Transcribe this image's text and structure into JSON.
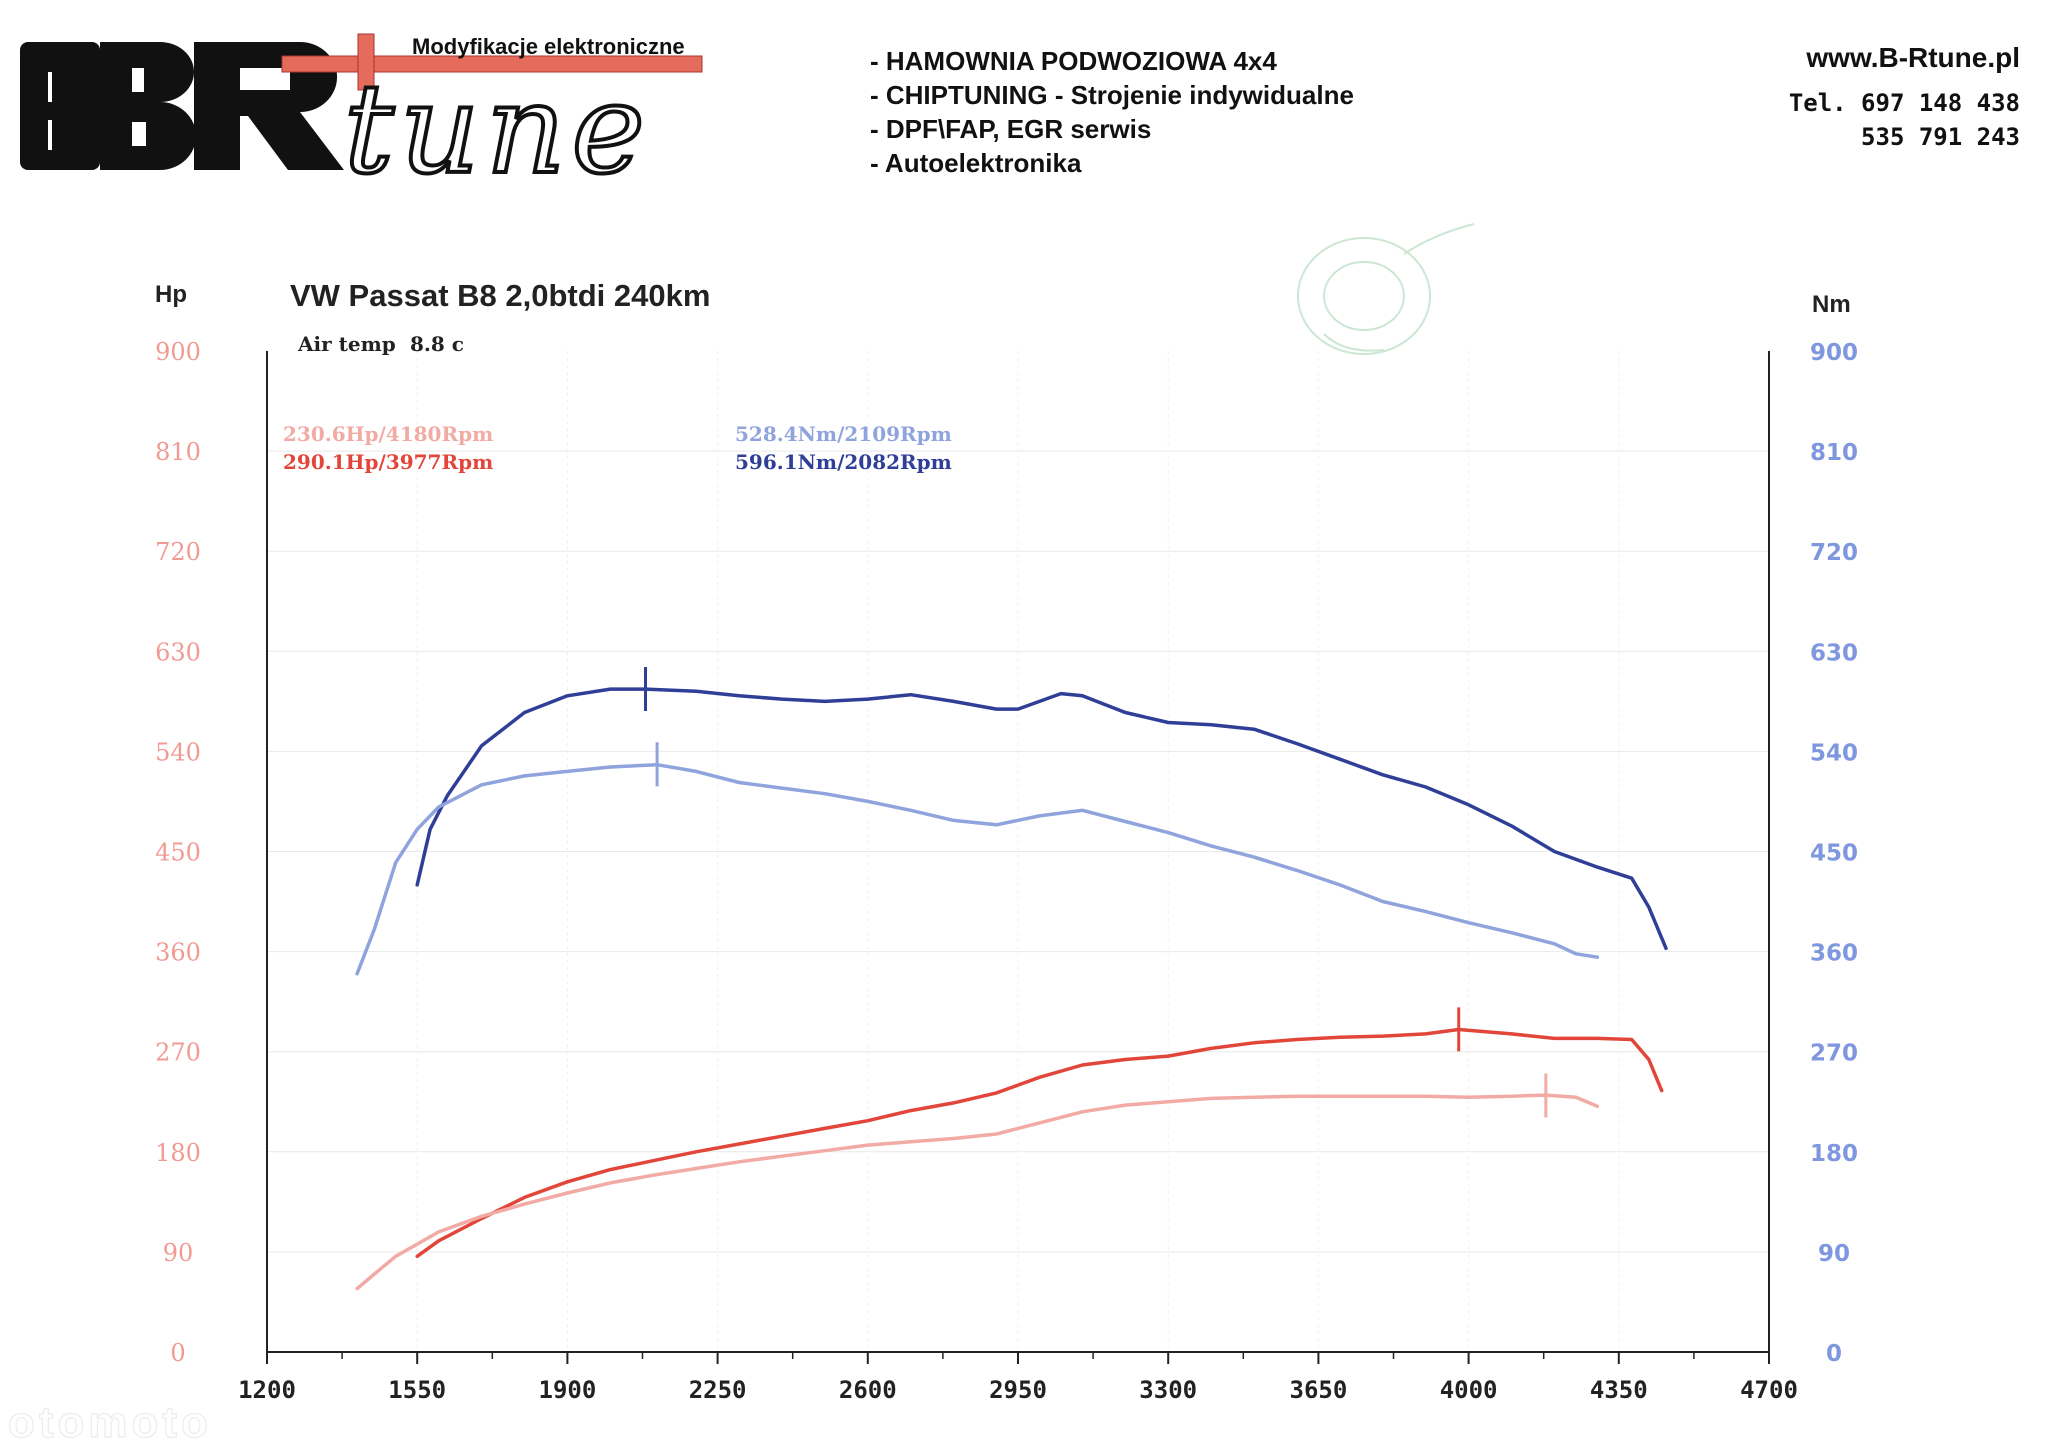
{
  "header": {
    "logo": {
      "text": "BRtune",
      "tagline": "Modyfikacje elektroniczne"
    },
    "services": [
      "- HAMOWNIA PODWOZIOWA 4x4",
      "- CHIPTUNING - Strojenie indywidualne",
      "- DPF\\FAP, EGR serwis",
      "- Autoelektronika"
    ],
    "website": "www.B-Rtune.pl",
    "phones": [
      "Tel. 697 148 438",
      "535 791 243"
    ]
  },
  "watermark": "otomoto",
  "colors": {
    "power_stock": "#f2aaa4",
    "power_tuned": "#e2463a",
    "torque_stock": "#8fa3dc",
    "torque_tuned": "#2f3f98",
    "hp_axis": "#f19a92",
    "nm_axis": "#7f97de"
  },
  "chart_data": {
    "type": "line",
    "title": "VW Passat B8 2,0btdi 240km",
    "air_temp_label": "Air temp",
    "air_temp_value": "8.8 c",
    "ylabel_left": "Hp",
    "ylabel_right": "Nm",
    "xlim": [
      1200,
      4700
    ],
    "ylim_left": [
      0,
      900
    ],
    "ylim_right": [
      0,
      900
    ],
    "x_ticks": [
      1200,
      1550,
      1900,
      2250,
      2600,
      2950,
      3300,
      3650,
      4000,
      4350,
      4700
    ],
    "y_ticks_left": [
      0,
      90,
      180,
      270,
      360,
      450,
      540,
      630,
      720,
      810,
      900
    ],
    "y_ticks_right": [
      0,
      90,
      180,
      270,
      360,
      450,
      540,
      630,
      720,
      810,
      900
    ],
    "grid": true,
    "legend": [
      {
        "text": "230.6Hp/4180Rpm",
        "series": "power_stock",
        "position": "top-left"
      },
      {
        "text": "290.1Hp/3977Rpm",
        "series": "power_tuned",
        "position": "top-left"
      },
      {
        "text": "528.4Nm/2109Rpm",
        "series": "torque_stock",
        "position": "top-center"
      },
      {
        "text": "596.1Nm/2082Rpm",
        "series": "torque_tuned",
        "position": "top-center"
      }
    ],
    "series": [
      {
        "key": "torque_tuned",
        "axis": "right",
        "color": "#2f3f98",
        "marker": {
          "x": 2082,
          "y": 596.1
        },
        "points": [
          [
            1550,
            420
          ],
          [
            1580,
            470
          ],
          [
            1620,
            500
          ],
          [
            1700,
            545
          ],
          [
            1800,
            575
          ],
          [
            1900,
            590
          ],
          [
            2000,
            596
          ],
          [
            2082,
            596
          ],
          [
            2200,
            594
          ],
          [
            2300,
            590
          ],
          [
            2400,
            587
          ],
          [
            2500,
            585
          ],
          [
            2600,
            587
          ],
          [
            2700,
            591
          ],
          [
            2800,
            585
          ],
          [
            2900,
            578
          ],
          [
            2950,
            578
          ],
          [
            3000,
            585
          ],
          [
            3050,
            592
          ],
          [
            3100,
            590
          ],
          [
            3200,
            575
          ],
          [
            3300,
            566
          ],
          [
            3400,
            564
          ],
          [
            3500,
            560
          ],
          [
            3600,
            547
          ],
          [
            3700,
            533
          ],
          [
            3800,
            519
          ],
          [
            3900,
            508
          ],
          [
            4000,
            492
          ],
          [
            4100,
            473
          ],
          [
            4200,
            450
          ],
          [
            4300,
            436
          ],
          [
            4380,
            426
          ],
          [
            4420,
            400
          ],
          [
            4460,
            363
          ]
        ]
      },
      {
        "key": "torque_stock",
        "axis": "right",
        "color": "#8fa3dc",
        "marker": {
          "x": 2109,
          "y": 528.4
        },
        "points": [
          [
            1410,
            340
          ],
          [
            1450,
            380
          ],
          [
            1500,
            440
          ],
          [
            1550,
            470
          ],
          [
            1600,
            490
          ],
          [
            1700,
            510
          ],
          [
            1800,
            518
          ],
          [
            1900,
            522
          ],
          [
            2000,
            526
          ],
          [
            2109,
            528
          ],
          [
            2200,
            522
          ],
          [
            2300,
            512
          ],
          [
            2400,
            507
          ],
          [
            2500,
            502
          ],
          [
            2600,
            495
          ],
          [
            2700,
            487
          ],
          [
            2800,
            478
          ],
          [
            2900,
            474
          ],
          [
            3000,
            482
          ],
          [
            3100,
            487
          ],
          [
            3200,
            477
          ],
          [
            3300,
            467
          ],
          [
            3400,
            455
          ],
          [
            3500,
            445
          ],
          [
            3600,
            433
          ],
          [
            3700,
            420
          ],
          [
            3800,
            405
          ],
          [
            3900,
            396
          ],
          [
            4000,
            386
          ],
          [
            4100,
            377
          ],
          [
            4200,
            367
          ],
          [
            4250,
            358
          ],
          [
            4300,
            355
          ]
        ]
      },
      {
        "key": "power_tuned",
        "axis": "left",
        "color": "#e2463a",
        "marker": {
          "x": 3977,
          "y": 290.1
        },
        "points": [
          [
            1550,
            86
          ],
          [
            1600,
            100
          ],
          [
            1700,
            120
          ],
          [
            1800,
            139
          ],
          [
            1900,
            153
          ],
          [
            2000,
            164
          ],
          [
            2100,
            172
          ],
          [
            2200,
            180
          ],
          [
            2300,
            187
          ],
          [
            2400,
            194
          ],
          [
            2500,
            201
          ],
          [
            2600,
            208
          ],
          [
            2700,
            217
          ],
          [
            2800,
            224
          ],
          [
            2900,
            233
          ],
          [
            3000,
            247
          ],
          [
            3100,
            258
          ],
          [
            3200,
            263
          ],
          [
            3300,
            266
          ],
          [
            3400,
            273
          ],
          [
            3500,
            278
          ],
          [
            3600,
            281
          ],
          [
            3700,
            283
          ],
          [
            3800,
            284
          ],
          [
            3900,
            286
          ],
          [
            3977,
            290
          ],
          [
            4100,
            286
          ],
          [
            4200,
            282
          ],
          [
            4300,
            282
          ],
          [
            4380,
            281
          ],
          [
            4420,
            263
          ],
          [
            4450,
            235
          ]
        ]
      },
      {
        "key": "power_stock",
        "axis": "left",
        "color": "#f2aaa4",
        "marker": {
          "x": 4180,
          "y": 230.6
        },
        "points": [
          [
            1410,
            57
          ],
          [
            1450,
            70
          ],
          [
            1500,
            86
          ],
          [
            1550,
            97
          ],
          [
            1600,
            108
          ],
          [
            1700,
            122
          ],
          [
            1800,
            133
          ],
          [
            1900,
            143
          ],
          [
            2000,
            152
          ],
          [
            2100,
            159
          ],
          [
            2200,
            165
          ],
          [
            2300,
            171
          ],
          [
            2400,
            176
          ],
          [
            2500,
            181
          ],
          [
            2600,
            186
          ],
          [
            2700,
            189
          ],
          [
            2800,
            192
          ],
          [
            2900,
            196
          ],
          [
            3000,
            206
          ],
          [
            3100,
            216
          ],
          [
            3200,
            222
          ],
          [
            3300,
            225
          ],
          [
            3400,
            228
          ],
          [
            3500,
            229
          ],
          [
            3600,
            230
          ],
          [
            3700,
            230
          ],
          [
            3800,
            230
          ],
          [
            3900,
            230
          ],
          [
            4000,
            229
          ],
          [
            4100,
            230
          ],
          [
            4180,
            231
          ],
          [
            4250,
            229
          ],
          [
            4300,
            221
          ]
        ]
      }
    ]
  }
}
